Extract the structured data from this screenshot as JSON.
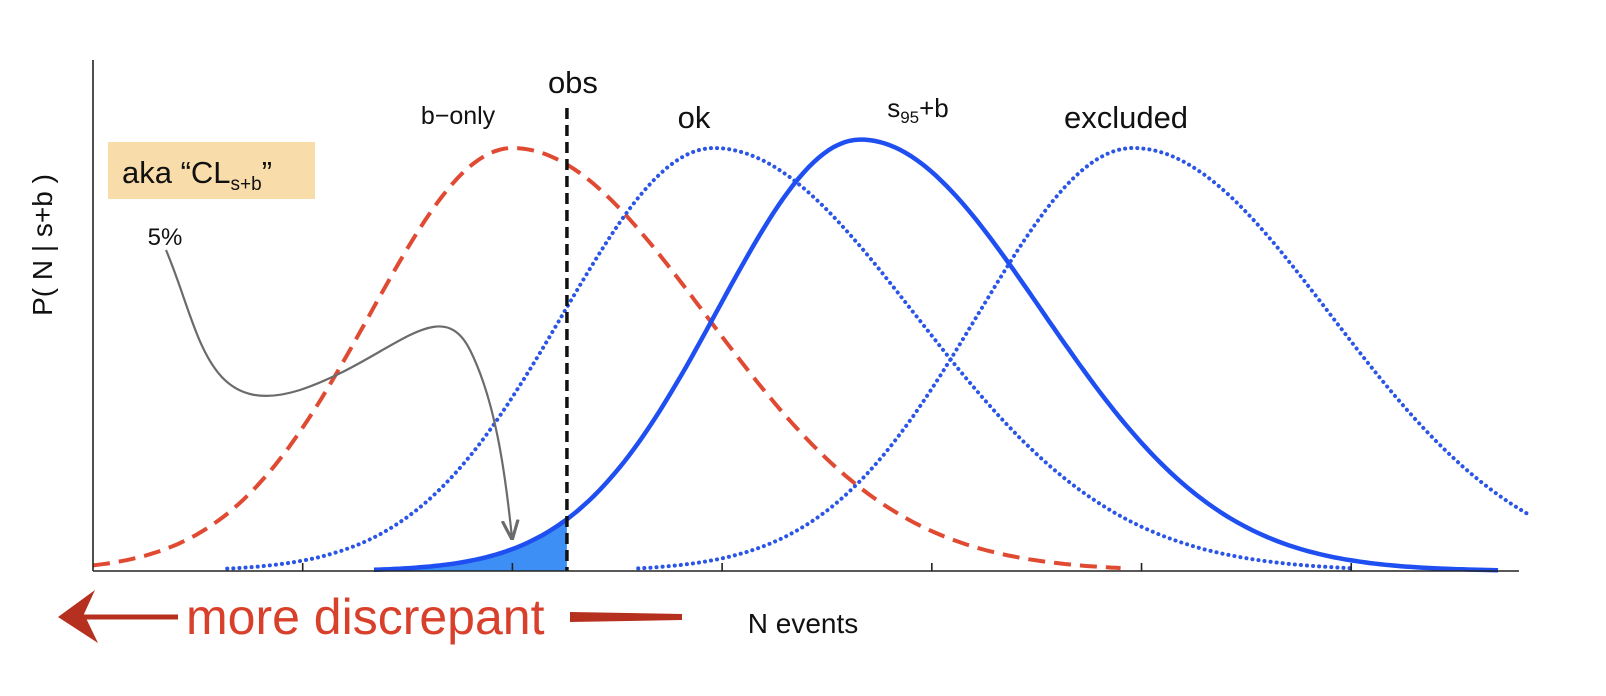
{
  "chart_data": {
    "type": "line",
    "title": "",
    "xlabel": "N events",
    "ylabel": "P( N | s+b )",
    "xlim": [
      0,
      34
    ],
    "ylim": [
      0,
      1.06
    ],
    "x_ticks": [
      5,
      10,
      15,
      20,
      25,
      30
    ],
    "grid": false,
    "observed": {
      "label": "obs",
      "x": 11.3
    },
    "series": [
      {
        "name": "b-only",
        "mean": 10,
        "sd_left": 3.4,
        "sd_right": 4.6,
        "x_range": [
          0,
          24.5
        ],
        "peak": 1.0,
        "style": "dashed",
        "color": "#e04a33"
      },
      {
        "name": "ok",
        "mean": 14.8,
        "sd_left": 3.6,
        "sd_right": 4.8,
        "x_range": [
          3.2,
          30
        ],
        "peak": 1.0,
        "style": "dotted",
        "color": "#2a55e6"
      },
      {
        "name": "s95+b",
        "mean": 18.3,
        "sd_left": 3.4,
        "sd_right": 4.3,
        "x_range": [
          6.7,
          33.5
        ],
        "peak": 1.02,
        "style": "solid",
        "color": "#1f4ff0"
      },
      {
        "name": "excluded",
        "mean": 24.8,
        "sd_left": 3.7,
        "sd_right": 4.7,
        "x_range": [
          13,
          34.2
        ],
        "peak": 1.0,
        "style": "dotted",
        "color": "#2a55e6"
      }
    ],
    "shaded_region": {
      "series": "s95+b",
      "x_from": 6.7,
      "x_to": 11.3,
      "color": "#3d8ff5"
    },
    "annotations": {
      "percent": "5%",
      "box_label_main": "aka “CL",
      "box_label_sub": "s+b",
      "box_label_end": "”",
      "discrepant": "more discrepant",
      "b_only_label": "b−only",
      "ok_label": "ok",
      "s95_main": "s",
      "s95_sub": "95",
      "s95_end": "+b",
      "excluded_label": "excluded"
    },
    "colors": {
      "box_fill": "#f8dcaa",
      "discrepant": "#d9402b",
      "arrow_dark": "#b5301f",
      "annotation_line": "#6b6b6b"
    }
  }
}
